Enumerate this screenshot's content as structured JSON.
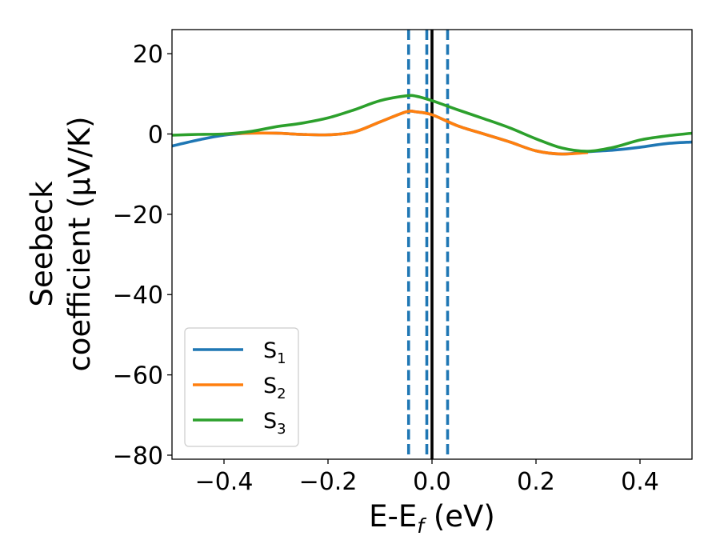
{
  "chart_data": {
    "type": "line",
    "xlabel": {
      "main": "E-E",
      "sub": "f",
      "unit": " (eV)"
    },
    "ylabel": {
      "line1": "Seebeck",
      "line2": "coefficient  (μV/K)"
    },
    "xlim": [
      -0.5,
      0.5
    ],
    "ylim": [
      -81,
      26
    ],
    "xticks": [
      -0.4,
      -0.2,
      0.0,
      0.2,
      0.4
    ],
    "xtick_labels": [
      "−0.4",
      "−0.2",
      "0.0",
      "0.2",
      "0.4"
    ],
    "yticks": [
      20,
      0,
      -20,
      -40,
      -60,
      -80
    ],
    "ytick_labels": [
      "20",
      "0",
      "−20",
      "−40",
      "−60",
      "−80"
    ],
    "grid": false,
    "legend_position": "lower-left",
    "vlines": [
      {
        "x": -0.045,
        "style": "dashed",
        "color": "#1f77b4"
      },
      {
        "x": -0.01,
        "style": "dashed",
        "color": "#1f77b4"
      },
      {
        "x": 0.03,
        "style": "dashed",
        "color": "#1f77b4"
      },
      {
        "x": 0.0,
        "style": "solid",
        "color": "#000000"
      }
    ],
    "series": [
      {
        "name": "S",
        "sub": "1",
        "color": "#1f77b4",
        "x": [
          -0.5,
          -0.45,
          -0.4,
          -0.35,
          -0.3,
          -0.25,
          -0.2,
          -0.15,
          -0.1,
          -0.05,
          -0.03,
          0.0,
          0.05,
          0.1,
          0.15,
          0.2,
          0.25,
          0.3,
          0.35,
          0.4,
          0.45,
          0.5
        ],
        "y": [
          -3,
          -1.5,
          -0.3,
          0.2,
          0.2,
          -0.1,
          -0.2,
          0.5,
          3,
          5.5,
          5.5,
          4.8,
          2,
          0,
          -2,
          -4.2,
          -5,
          -4.4,
          -4,
          -3.3,
          -2.4,
          -2
        ]
      },
      {
        "name": "S",
        "sub": "2",
        "color": "#ff7f0e",
        "x": [
          -0.4,
          -0.35,
          -0.3,
          -0.25,
          -0.2,
          -0.15,
          -0.1,
          -0.05,
          -0.03,
          0.0,
          0.05,
          0.1,
          0.15,
          0.2,
          0.25,
          0.3
        ],
        "y": [
          0,
          0.2,
          0.2,
          -0.1,
          -0.2,
          0.5,
          3,
          5.5,
          5.5,
          4.8,
          2,
          0,
          -2,
          -4.2,
          -5,
          -4.6
        ]
      },
      {
        "name": "S",
        "sub": "3",
        "color": "#2ca02c",
        "x": [
          -0.5,
          -0.45,
          -0.4,
          -0.35,
          -0.3,
          -0.25,
          -0.2,
          -0.15,
          -0.1,
          -0.05,
          -0.03,
          0.0,
          0.05,
          0.1,
          0.15,
          0.2,
          0.25,
          0.3,
          0.35,
          0.4,
          0.45,
          0.5
        ],
        "y": [
          -0.3,
          -0.1,
          0,
          0.6,
          1.8,
          2.7,
          4,
          6,
          8.3,
          9.5,
          9.4,
          8.3,
          6,
          3.8,
          1.5,
          -1.2,
          -3.5,
          -4.3,
          -3.3,
          -1.5,
          -0.5,
          0.2
        ]
      }
    ]
  }
}
